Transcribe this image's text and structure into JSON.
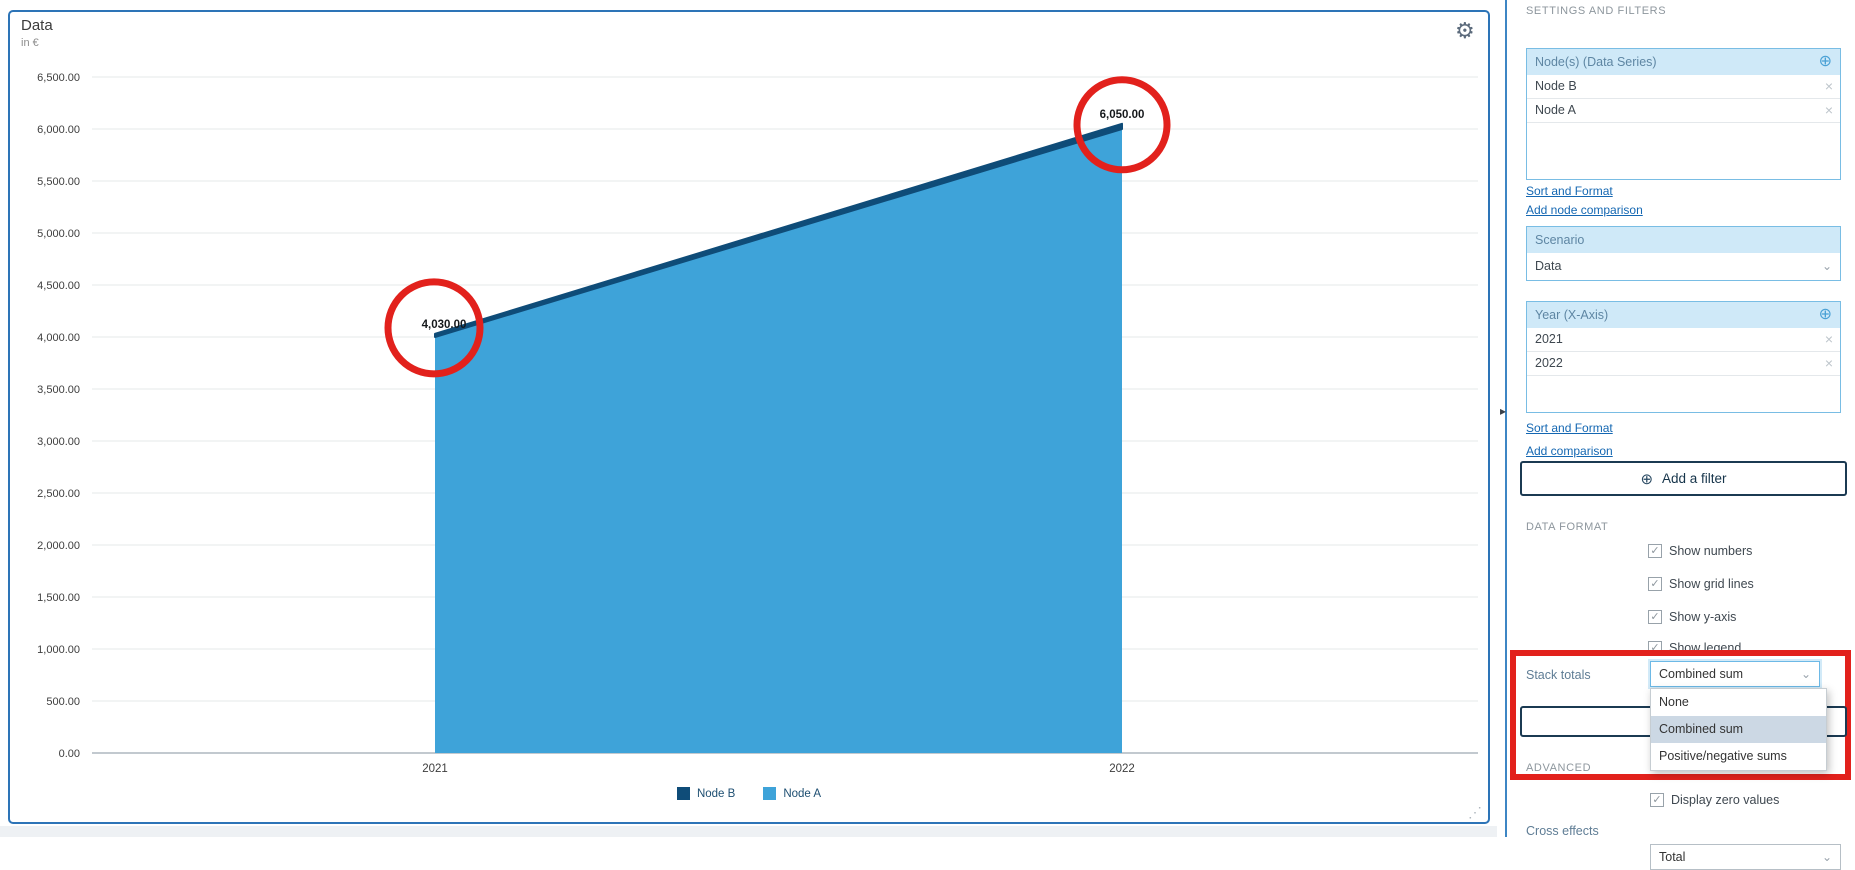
{
  "icons": {
    "gear": "⚙",
    "plus_circle": "⊕",
    "close": "×",
    "chevron_down": "⌄",
    "check": "✓",
    "collapse_arrow": "▸",
    "resize_handle": "⋰"
  },
  "colors": {
    "accent_blue": "#2d74b7",
    "panel_header_bg": "#cfe9f8",
    "panel_border": "#79bde4",
    "link": "#1467b2",
    "annotation_red": "#e2211c",
    "series_node_a": "#3ea3d9",
    "series_node_b": "#0f4c78",
    "dropdown_selected_bg": "#ccd8e4"
  },
  "chart_panel": {
    "title": "Data",
    "subtitle": "in €"
  },
  "chart_data": {
    "type": "area",
    "stacked": true,
    "title": "Data",
    "unit": "in €",
    "x": [
      "2021",
      "2022"
    ],
    "series": [
      {
        "name": "Node B",
        "color": "#0f4c78",
        "values": [
          30,
          50
        ]
      },
      {
        "name": "Node A",
        "color": "#3ea3d9",
        "values": [
          4000,
          6000
        ]
      }
    ],
    "stack_totals": [
      4030,
      6050
    ],
    "stack_total_labels": [
      "4,030.00",
      "6,050.00"
    ],
    "ylim": [
      0,
      6500
    ],
    "ytick_step": 500,
    "ytick_labels": [
      "0.00",
      "500.00",
      "1,000.00",
      "1,500.00",
      "2,000.00",
      "2,500.00",
      "3,000.00",
      "3,500.00",
      "4,000.00",
      "4,500.00",
      "5,000.00",
      "5,500.00",
      "6,000.00",
      "6,500.00"
    ],
    "grid": true,
    "legend_position": "bottom",
    "annotations": {
      "type": "hand-drawn-circles",
      "color": "#e2211c",
      "circled_values": [
        "4,030.00",
        "6,050.00"
      ]
    }
  },
  "settings": {
    "header": "SETTINGS AND FILTERS",
    "nodes_box": {
      "header": "Node(s) (Data Series)",
      "items": [
        "Node B",
        "Node A"
      ]
    },
    "nodes_links": [
      "Sort and Format",
      "Add node comparison"
    ],
    "scenario_box": {
      "header": "Scenario",
      "value": "Data"
    },
    "year_box": {
      "header": "Year (X-Axis)",
      "items": [
        "2021",
        "2022"
      ]
    },
    "year_links": [
      "Sort and Format",
      "Add comparison"
    ],
    "add_filter_label": "Add a filter",
    "data_format": {
      "header": "DATA FORMAT",
      "checkboxes": [
        "Show numbers",
        "Show grid lines",
        "Show y-axis",
        "Show legend"
      ],
      "stack_totals_label": "Stack totals",
      "stack_totals_value": "Combined sum",
      "stack_totals_options": [
        "None",
        "Combined sum",
        "Positive/negative sums"
      ],
      "stack_totals_selected": "Combined sum"
    },
    "advanced": {
      "header": "ADVANCED",
      "display_zero_label": "Display zero values",
      "cross_effects_label": "Cross effects",
      "cross_effects_value": "Total"
    }
  }
}
